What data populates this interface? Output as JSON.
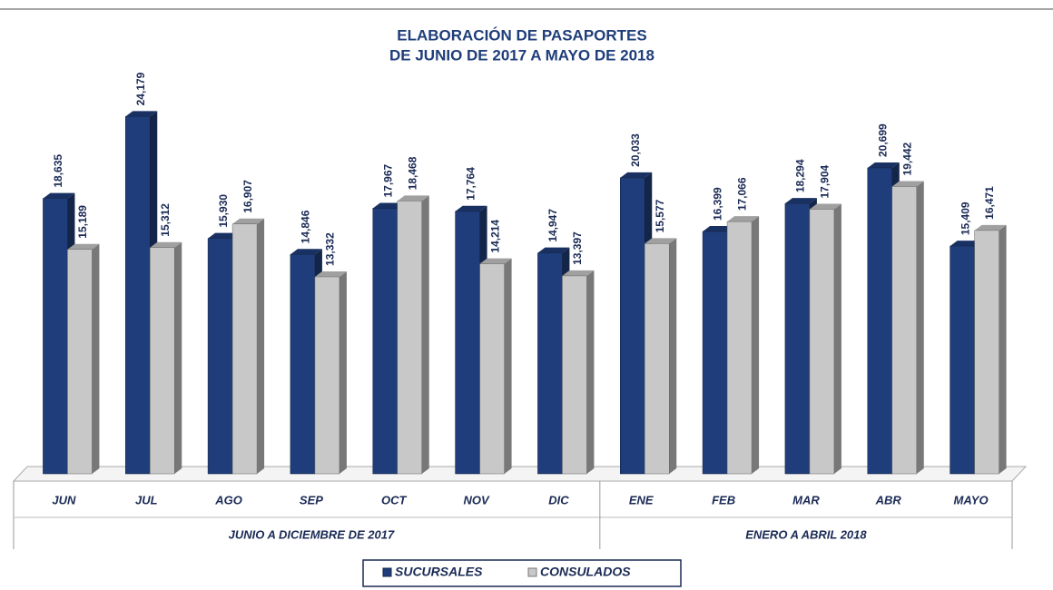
{
  "chart_data": {
    "type": "bar3d",
    "title": "ELABORACIÓN DE PASAPORTES",
    "subtitle": "DE JUNIO DE 2017 A MAYO DE 2018",
    "categories": [
      "JUN",
      "JUL",
      "AGO",
      "SEP",
      "OCT",
      "NOV",
      "DIC",
      "ENE",
      "FEB",
      "MAR",
      "ABR",
      "MAYO"
    ],
    "groups": [
      {
        "label": "JUNIO A DICIEMBRE DE 2017",
        "count": 7
      },
      {
        "label": "ENERO A ABRIL 2018",
        "count": 5
      }
    ],
    "series": [
      {
        "name": "SUCURSALES",
        "color": "#1f3d7a",
        "values": [
          18635,
          24179,
          15930,
          14846,
          17967,
          17764,
          14947,
          20033,
          16399,
          18294,
          20699,
          15409
        ],
        "value_labels": [
          "18,635",
          "24,179",
          "15,930",
          "14,846",
          "17,967",
          "17,764",
          "14,947",
          "20,033",
          "16,399",
          "18,294",
          "20,699",
          "15,409"
        ]
      },
      {
        "name": "CONSULADOS",
        "color": "#c8c8c8",
        "values": [
          15189,
          15312,
          16907,
          13332,
          18468,
          14214,
          13397,
          15577,
          17066,
          17904,
          19442,
          16471
        ],
        "value_labels": [
          "15,189",
          "15,312",
          "16,907",
          "13,332",
          "18,468",
          "14,214",
          "13,397",
          "15,577",
          "17,066",
          "17,904",
          "19,442",
          "16,471"
        ]
      }
    ],
    "ylim": [
      0,
      25000
    ]
  }
}
